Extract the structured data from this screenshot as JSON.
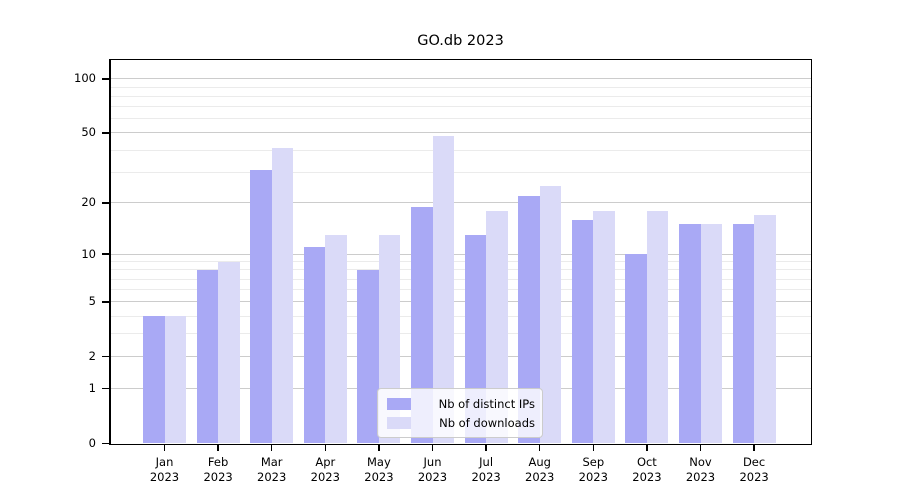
{
  "chart_data": {
    "type": "bar",
    "title": "GO.db 2023",
    "categories": [
      "Jan 2023",
      "Feb 2023",
      "Mar 2023",
      "Apr 2023",
      "May 2023",
      "Jun 2023",
      "Jul 2023",
      "Aug 2023",
      "Sep 2023",
      "Oct 2023",
      "Nov 2023",
      "Dec 2023"
    ],
    "series": [
      {
        "name": "Nb of distinct IPs",
        "color": "#a9a9f5",
        "values": [
          4,
          8,
          31,
          11,
          8,
          19,
          13,
          22,
          16,
          10,
          15,
          15
        ]
      },
      {
        "name": "Nb of downloads",
        "color": "#dadaf8",
        "values": [
          4,
          9,
          41,
          13,
          13,
          48,
          18,
          25,
          18,
          18,
          15,
          17
        ]
      }
    ],
    "xlabel": "",
    "ylabel": "",
    "yscale": "log1p",
    "ylim": [
      0,
      126
    ],
    "y_ticks": [
      0,
      1,
      2,
      5,
      10,
      20,
      50,
      100
    ],
    "y_minor_gridlines": [
      3,
      4,
      6,
      7,
      8,
      9,
      30,
      40,
      60,
      70,
      80,
      90
    ],
    "grid": "horizontal",
    "legend_position": "lower-center",
    "colors": {
      "major_grid": "#cccccc",
      "minor_grid": "#ebebeb",
      "axis": "#000000",
      "text": "#000000",
      "background": "#ffffff"
    }
  }
}
